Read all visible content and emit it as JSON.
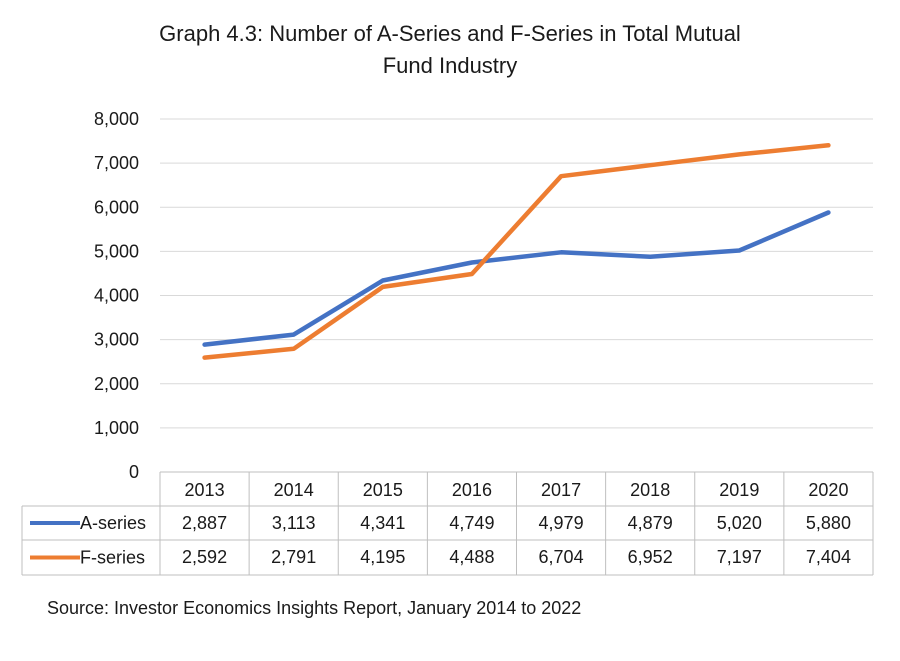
{
  "chart_data": {
    "type": "line",
    "title_lines": [
      "Graph 4.3: Number of  A-Series and F-Series in Total Mutual",
      "Fund Industry"
    ],
    "categories": [
      "2013",
      "2014",
      "2015",
      "2016",
      "2017",
      "2018",
      "2019",
      "2020"
    ],
    "series": [
      {
        "name": "A-series",
        "color": "#4472C4",
        "values": [
          2887,
          3113,
          4341,
          4749,
          4979,
          4879,
          5020,
          5880
        ],
        "labels": [
          "2,887",
          "3,113",
          "4,341",
          "4,749",
          "4,979",
          "4,879",
          "5,020",
          "5,880"
        ]
      },
      {
        "name": "F-series",
        "color": "#ED7D31",
        "values": [
          2592,
          2791,
          4195,
          4488,
          6704,
          6952,
          7197,
          7404
        ],
        "labels": [
          "2,592",
          "2,791",
          "4,195",
          "4,488",
          "6,704",
          "6,952",
          "7,197",
          "7,404"
        ]
      }
    ],
    "ylim": [
      0,
      8000
    ],
    "yticks": [
      0,
      1000,
      2000,
      3000,
      4000,
      5000,
      6000,
      7000,
      8000
    ],
    "ytick_labels": [
      "0",
      "1,000",
      "2,000",
      "3,000",
      "4,000",
      "5,000",
      "6,000",
      "7,000",
      "8,000"
    ],
    "grid": true,
    "legend": "data-table",
    "source": "Source: Investor Economics Insights Report, January 2014 to 2022"
  }
}
